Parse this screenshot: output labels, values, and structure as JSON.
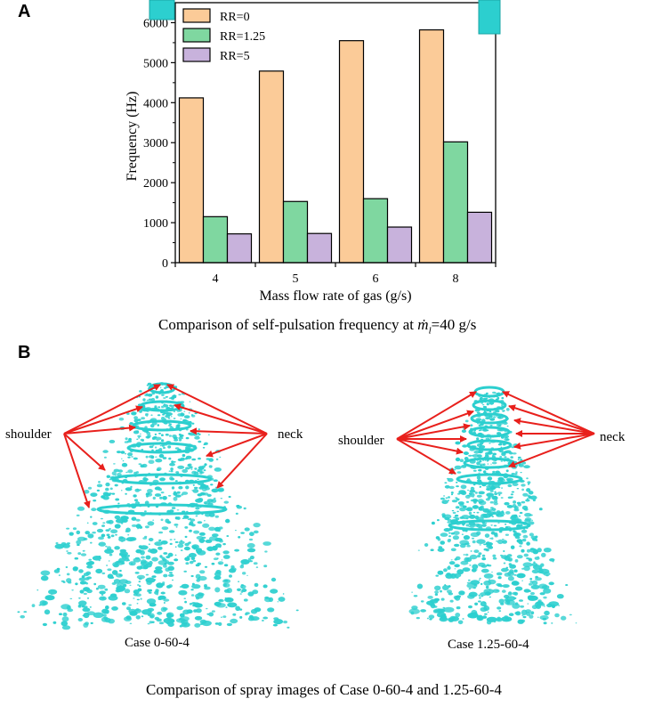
{
  "panel_a": {
    "letter": "A"
  },
  "panel_b": {
    "letter": "B"
  },
  "chart_data": {
    "type": "bar",
    "categories": [
      "4",
      "5",
      "6",
      "8"
    ],
    "series": [
      {
        "name": "RR=0",
        "color": "#FBCB98",
        "values": [
          4120,
          4790,
          5550,
          5820
        ]
      },
      {
        "name": "RR=1.25",
        "color": "#7FD7A0",
        "values": [
          1150,
          1530,
          1600,
          3020
        ]
      },
      {
        "name": "RR=5",
        "color": "#C8B2DC",
        "values": [
          720,
          730,
          890,
          1260
        ]
      }
    ],
    "ylabel": "Frequency (Hz)",
    "xlabel": "Mass flow rate of gas (g/s)",
    "ylim": [
      0,
      6500
    ],
    "yticks": [
      "0",
      "1000",
      "2000",
      "3000",
      "4000",
      "5000",
      "6000"
    ],
    "ytick_values": [
      0,
      1000,
      2000,
      3000,
      4000,
      5000,
      6000
    ],
    "legend_position": "top-left"
  },
  "captions": {
    "chart_caption_prefix": "Comparison of self-pulsation frequency at",
    "chart_caption_m": "ṁ",
    "chart_caption_sub": "l",
    "chart_caption_suffix": "=40 g/s",
    "spray_caption": "Comparison of spray images of Case 0-60-4 and 1.25-60-4"
  },
  "spray": {
    "left_case": "Case 0-60-4",
    "right_case": "Case 1.25-60-4",
    "shoulder_label": "shoulder",
    "neck_label": "neck",
    "droplet_color": "#2CCFCF",
    "arrow_color": "#E8201C"
  }
}
